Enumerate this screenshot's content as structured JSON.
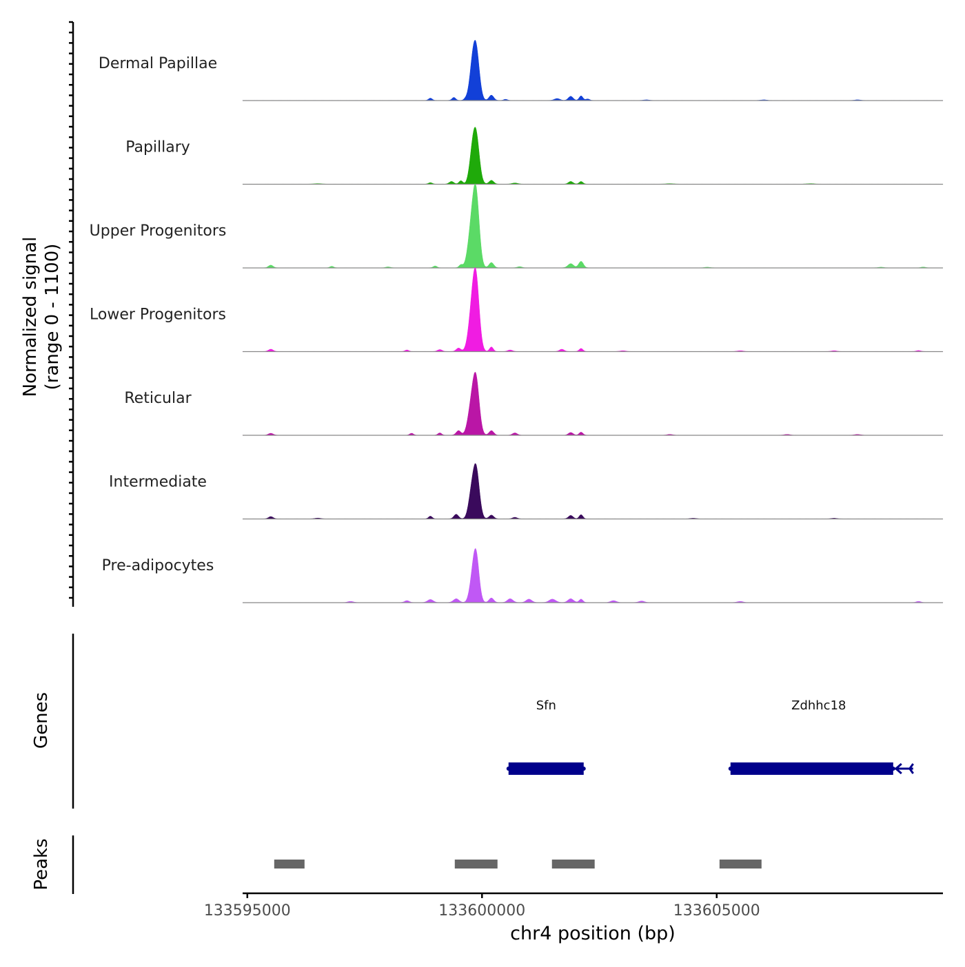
{
  "chart_data": {
    "type": "area",
    "title": "",
    "ylabel": "Normalized signal\n(range 0 - 1100)",
    "ylabel_lines": [
      "Normalized signal",
      "(range 0 - 1100)"
    ],
    "xlabel": "chr4 position (bp)",
    "xlim": [
      133594900,
      133609820
    ],
    "ylim": [
      0,
      1100
    ],
    "x_ticks": [
      133595000,
      133600000,
      133605000
    ],
    "x_tick_labels": [
      "133595000",
      "133600000",
      "133605000"
    ],
    "tracks": [
      {
        "name": "Dermal Papillae",
        "color": "#1240D8",
        "bumps": [
          [
            133599870,
            690,
            70
          ],
          [
            133599780,
            260,
            60
          ],
          [
            133600200,
            70,
            50
          ],
          [
            133599400,
            40,
            40
          ],
          [
            133598900,
            30,
            40
          ],
          [
            133601600,
            25,
            60
          ],
          [
            133601890,
            55,
            50
          ],
          [
            133602110,
            60,
            40
          ],
          [
            133602250,
            20,
            40
          ],
          [
            133599650,
            20,
            40
          ],
          [
            133600500,
            15,
            40
          ],
          [
            133603500,
            8,
            60
          ],
          [
            133606000,
            8,
            60
          ],
          [
            133608000,
            8,
            60
          ]
        ]
      },
      {
        "name": "Papillary",
        "color": "#1FAA0A",
        "bumps": [
          [
            133599870,
            655,
            70
          ],
          [
            133599780,
            240,
            60
          ],
          [
            133600200,
            50,
            50
          ],
          [
            133599550,
            45,
            40
          ],
          [
            133599350,
            35,
            50
          ],
          [
            133598900,
            20,
            40
          ],
          [
            133601890,
            35,
            50
          ],
          [
            133602110,
            35,
            40
          ],
          [
            133600700,
            15,
            60
          ],
          [
            133596500,
            6,
            80
          ],
          [
            133604000,
            6,
            80
          ],
          [
            133607000,
            6,
            80
          ]
        ]
      },
      {
        "name": "Upper Progenitors",
        "color": "#5BDA66",
        "bumps": [
          [
            133599870,
            973,
            70
          ],
          [
            133599760,
            400,
            70
          ],
          [
            133600200,
            70,
            50
          ],
          [
            133599550,
            40,
            40
          ],
          [
            133599000,
            25,
            40
          ],
          [
            133601890,
            55,
            60
          ],
          [
            133602110,
            85,
            50
          ],
          [
            133595500,
            35,
            50
          ],
          [
            133596800,
            20,
            40
          ],
          [
            133598000,
            12,
            50
          ],
          [
            133600800,
            15,
            50
          ],
          [
            133604800,
            8,
            60
          ],
          [
            133608500,
            8,
            60
          ],
          [
            133609400,
            10,
            50
          ]
        ]
      },
      {
        "name": "Lower Progenitors",
        "color": "#F01CE2",
        "bumps": [
          [
            133599870,
            945,
            70
          ],
          [
            133599770,
            380,
            70
          ],
          [
            133600200,
            60,
            40
          ],
          [
            133599500,
            45,
            50
          ],
          [
            133599100,
            25,
            50
          ],
          [
            133598400,
            20,
            40
          ],
          [
            133601700,
            30,
            50
          ],
          [
            133602110,
            40,
            40
          ],
          [
            133595500,
            30,
            50
          ],
          [
            133600600,
            20,
            50
          ],
          [
            133603000,
            10,
            60
          ],
          [
            133605500,
            10,
            60
          ],
          [
            133607500,
            10,
            60
          ],
          [
            133609300,
            12,
            50
          ]
        ]
      },
      {
        "name": "Reticular",
        "color": "#BA16A6",
        "bumps": [
          [
            133599870,
            727,
            70
          ],
          [
            133599760,
            300,
            70
          ],
          [
            133600200,
            60,
            50
          ],
          [
            133599500,
            60,
            50
          ],
          [
            133599100,
            30,
            40
          ],
          [
            133598500,
            25,
            40
          ],
          [
            133601890,
            35,
            50
          ],
          [
            133602110,
            40,
            40
          ],
          [
            133600700,
            30,
            50
          ],
          [
            133595500,
            25,
            50
          ],
          [
            133604000,
            10,
            60
          ],
          [
            133606500,
            10,
            60
          ],
          [
            133608000,
            10,
            60
          ]
        ]
      },
      {
        "name": "Intermediate",
        "color": "#3A0A5C",
        "bumps": [
          [
            133599870,
            682,
            70
          ],
          [
            133599760,
            220,
            60
          ],
          [
            133600200,
            50,
            50
          ],
          [
            133599450,
            60,
            50
          ],
          [
            133598900,
            35,
            40
          ],
          [
            133601890,
            45,
            50
          ],
          [
            133602110,
            55,
            40
          ],
          [
            133600700,
            20,
            50
          ],
          [
            133595500,
            30,
            50
          ],
          [
            133596500,
            10,
            60
          ],
          [
            133604500,
            8,
            60
          ],
          [
            133607500,
            8,
            60
          ]
        ]
      },
      {
        "name": "Pre-adipocytes",
        "color": "#C058F5",
        "bumps": [
          [
            133599870,
            645,
            65
          ],
          [
            133599780,
            180,
            60
          ],
          [
            133600200,
            60,
            50
          ],
          [
            133599450,
            50,
            60
          ],
          [
            133598900,
            40,
            60
          ],
          [
            133598400,
            25,
            50
          ],
          [
            133600600,
            50,
            60
          ],
          [
            133601000,
            45,
            60
          ],
          [
            133601500,
            45,
            70
          ],
          [
            133601890,
            50,
            60
          ],
          [
            133602110,
            45,
            40
          ],
          [
            133597200,
            15,
            60
          ],
          [
            133602800,
            25,
            60
          ],
          [
            133603400,
            20,
            60
          ],
          [
            133605500,
            15,
            60
          ],
          [
            133609300,
            15,
            50
          ]
        ]
      }
    ],
    "genes_track": {
      "label": "Genes",
      "color": "#00008B",
      "genes": [
        {
          "name": "Sfn",
          "start": 133600565,
          "end": 133602166,
          "strand": "+"
        },
        {
          "name": "Zdhhc18",
          "start": 133605294,
          "end": 133608760,
          "line_end": 133609185,
          "strand": "-"
        }
      ]
    },
    "peaks_track": {
      "label": "Peaks",
      "color": "#666666",
      "peaks": [
        [
          133595573,
          133596219
        ],
        [
          133599420,
          133600330
        ],
        [
          133601490,
          133602400
        ],
        [
          133605060,
          133605955
        ]
      ]
    }
  }
}
